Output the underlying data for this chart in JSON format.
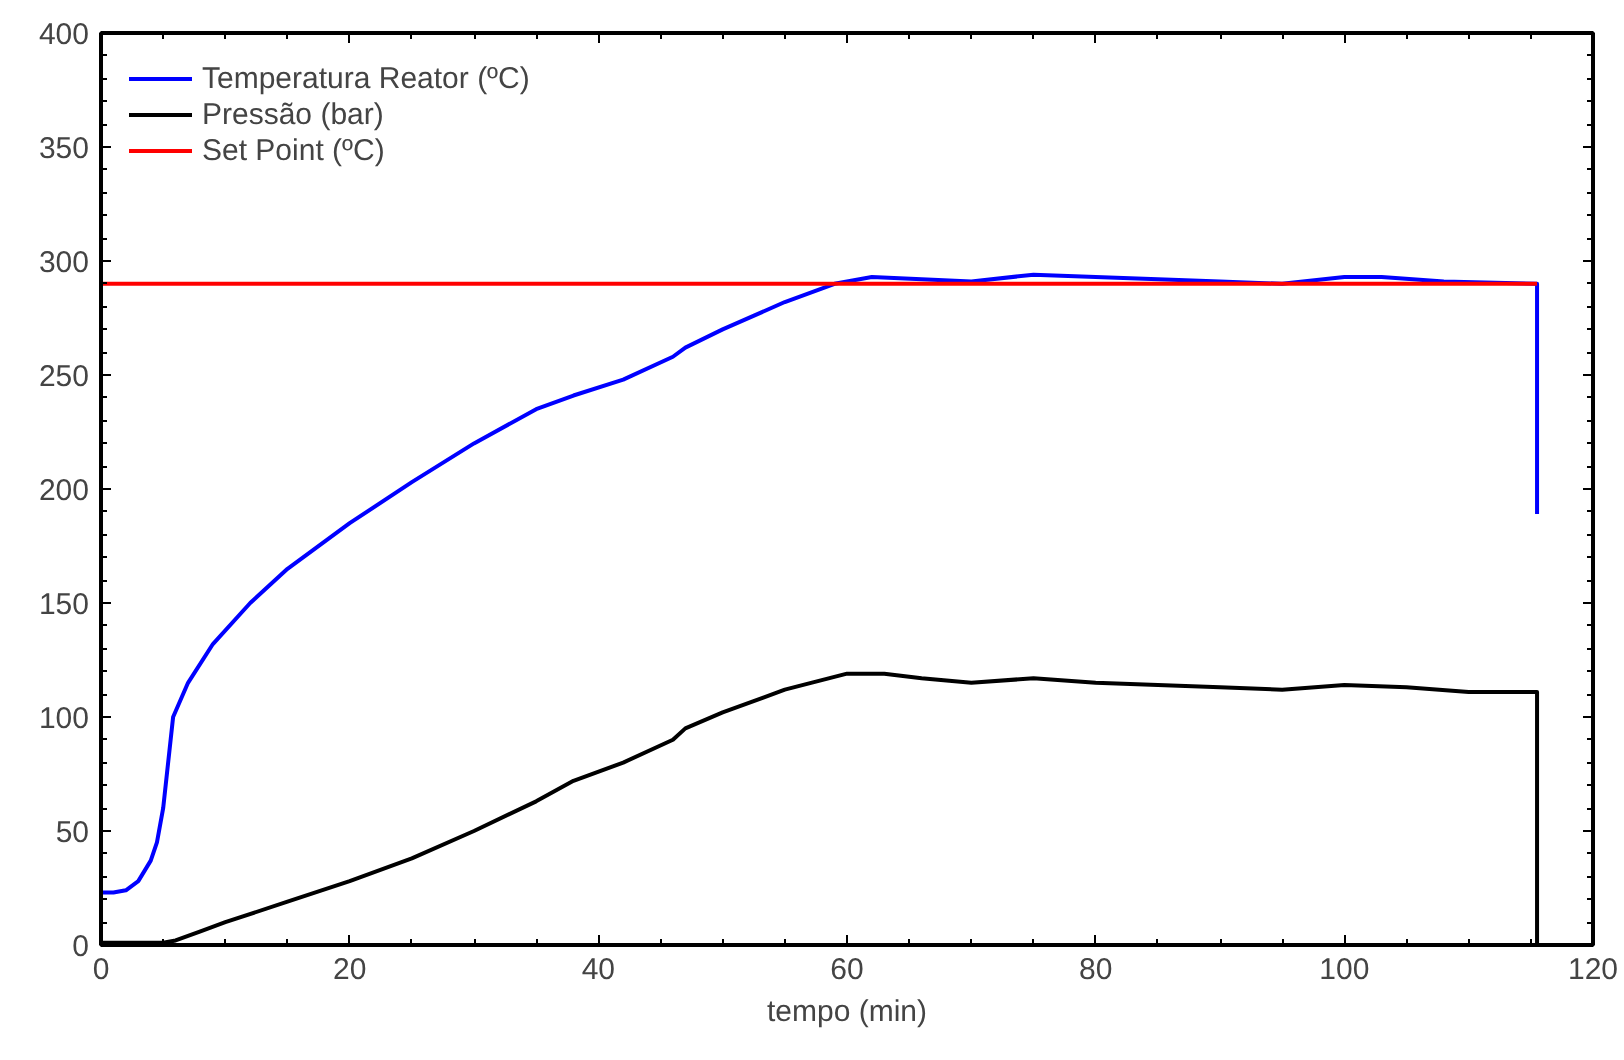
{
  "chart_data": {
    "type": "line",
    "xlabel": "tempo (min)",
    "xlim": [
      0,
      120
    ],
    "ylim": [
      0,
      400
    ],
    "xticks": [
      0,
      20,
      40,
      60,
      80,
      100,
      120
    ],
    "yticks": [
      0,
      50,
      100,
      150,
      200,
      250,
      300,
      350,
      400
    ],
    "grid": false,
    "legend": "top left",
    "marker": "none",
    "line_style": "solid",
    "series": [
      {
        "name": "Temperatura Reator (ºC)",
        "color": "#0000ff",
        "x": [
          0,
          1,
          2,
          3,
          4,
          4.5,
          5,
          5.5,
          5.8,
          7,
          9,
          12,
          15,
          20,
          25,
          30,
          35,
          38,
          42,
          46,
          47,
          50,
          55,
          59,
          62,
          66,
          70,
          75,
          80,
          85,
          90,
          95,
          100,
          103,
          108,
          115.5,
          115.5
        ],
        "values": [
          23,
          23,
          24,
          28,
          37,
          45,
          60,
          85,
          100,
          115,
          132,
          150,
          165,
          185,
          203,
          220,
          235,
          241,
          248,
          258,
          262,
          270,
          282,
          290,
          293,
          292,
          291,
          294,
          293,
          292,
          291,
          290,
          293,
          293,
          291,
          290,
          189
        ]
      },
      {
        "name": "Pressão (bar)",
        "color": "#000000",
        "x": [
          0,
          5,
          6,
          8,
          10,
          15,
          20,
          25,
          30,
          35,
          38,
          42,
          46,
          47,
          50,
          55,
          60,
          63,
          66,
          70,
          75,
          80,
          85,
          90,
          95,
          100,
          105,
          110,
          115.5,
          115.5
        ],
        "values": [
          1,
          1,
          2,
          6,
          10,
          19,
          28,
          38,
          50,
          63,
          72,
          80,
          90,
          95,
          102,
          112,
          119,
          119,
          117,
          115,
          117,
          115,
          114,
          113,
          112,
          114,
          113,
          111,
          111,
          0
        ]
      },
      {
        "name": "Set Point (ºC)",
        "color": "#ff0000",
        "x": [
          0,
          115.5
        ],
        "values": [
          290,
          290
        ]
      }
    ]
  }
}
